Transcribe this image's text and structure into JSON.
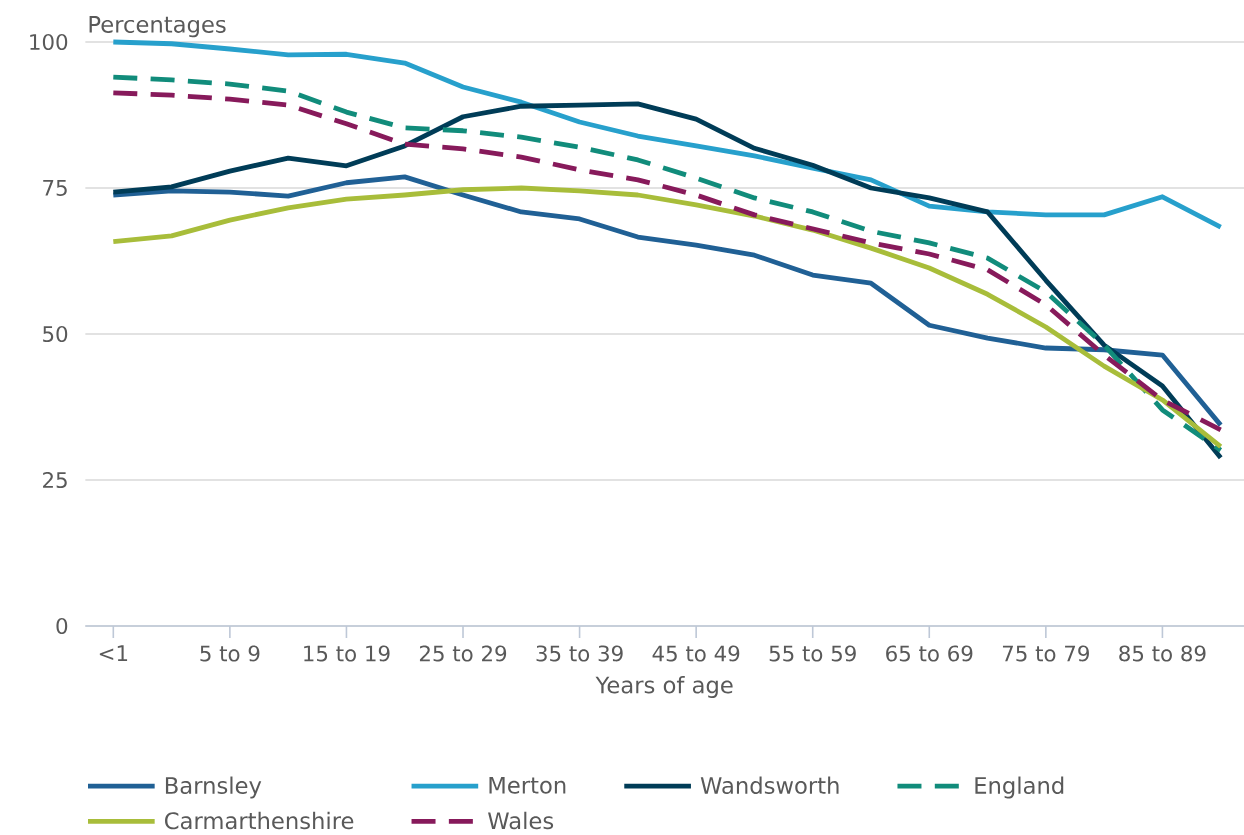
{
  "chart_data": {
    "type": "line",
    "ylabel": "Percentages",
    "xlabel": "Years of age",
    "categories": [
      "<1",
      null,
      "5 to 9",
      null,
      "15 to 19",
      null,
      "25 to 29",
      null,
      "35 to 39",
      null,
      "45 to 49",
      null,
      "55 to 59",
      null,
      "65 to 69",
      null,
      "75 to 79",
      null,
      "85 to 89",
      null
    ],
    "ylim": [
      0,
      100
    ],
    "yticks": [
      0,
      25,
      50,
      75,
      100
    ],
    "grid": "y",
    "legend": "bottom",
    "line_style": "solid",
    "marker": "none",
    "series": [
      {
        "name": "Barnsley",
        "color": "#206095",
        "values": [
          73.8,
          74.5,
          74.3,
          73.6,
          75.9,
          76.9,
          73.8,
          70.9,
          69.7,
          66.6,
          65.2,
          63.5,
          60.1,
          58.7,
          51.5,
          49.3,
          47.6,
          47.3,
          46.4,
          34.4
        ]
      },
      {
        "name": "Merton",
        "color": "#27a0cc",
        "values": [
          100,
          99.7,
          98.8,
          97.8,
          97.9,
          96.4,
          92.3,
          89.7,
          86.3,
          83.9,
          82.2,
          80.5,
          78.4,
          76.4,
          71.9,
          70.9,
          70.4,
          70.4,
          73.5,
          68.3
        ]
      },
      {
        "name": "Wandsworth",
        "color": "#003c57",
        "values": [
          74.3,
          75.2,
          77.9,
          80.1,
          78.8,
          82.2,
          87.2,
          89.0,
          89.2,
          89.4,
          86.8,
          81.8,
          78.9,
          75.0,
          73.3,
          70.9,
          59.2,
          48.1,
          41.1,
          28.8
        ]
      },
      {
        "name": "England",
        "color": "#118c7b",
        "line_style": "dashed",
        "values": [
          94.0,
          93.5,
          92.8,
          91.6,
          88.0,
          85.3,
          84.8,
          83.7,
          82.0,
          79.8,
          76.7,
          73.3,
          70.9,
          67.6,
          65.6,
          63.0,
          57.2,
          48.1,
          37.0,
          30.1
        ]
      },
      {
        "name": "Carmarthenshire",
        "color": "#a8bd3a",
        "values": [
          65.8,
          66.8,
          69.5,
          71.6,
          73.1,
          73.8,
          74.7,
          75.0,
          74.5,
          73.8,
          72.1,
          70.2,
          67.8,
          64.7,
          61.3,
          56.8,
          51.2,
          44.5,
          38.7,
          30.7
        ]
      },
      {
        "name": "Wales",
        "color": "#871a5b",
        "line_style": "dashed",
        "values": [
          91.3,
          90.9,
          90.2,
          89.2,
          86.0,
          82.5,
          81.7,
          80.3,
          78.1,
          76.4,
          73.8,
          70.4,
          68.0,
          65.6,
          63.7,
          61.0,
          55.0,
          46.4,
          38.7,
          33.6
        ]
      }
    ]
  }
}
